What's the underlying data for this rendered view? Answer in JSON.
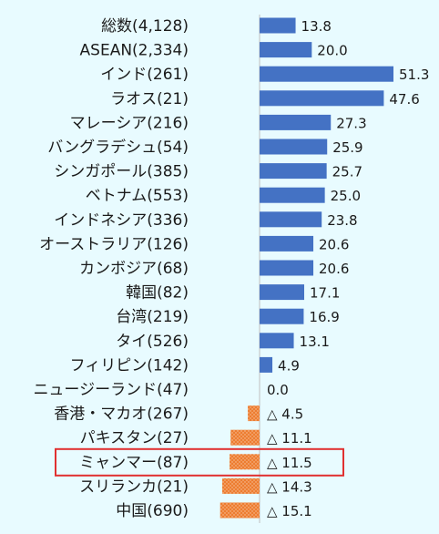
{
  "chart_data": {
    "type": "bar",
    "orientation": "horizontal",
    "title": "",
    "xlabel": "",
    "ylabel": "",
    "xlim": [
      -20,
      55
    ],
    "grid": false,
    "legend": "none",
    "colors": {
      "positive": "#4472c4",
      "negative": "#ed7d31",
      "highlight_box": "#e03030"
    },
    "highlight_category": "ミャンマー(87)",
    "categories": [
      "総数(4,128)",
      "ASEAN(2,334)",
      "インド(261)",
      "ラオス(21)",
      "マレーシア(216)",
      "バングラデシュ(54)",
      "シンガポール(385)",
      "ベトナム(553)",
      "インドネシア(336)",
      "オーストラリア(126)",
      "カンボジア(68)",
      "韓国(82)",
      "台湾(219)",
      "タイ(526)",
      "フィリピン(142)",
      "ニュージーランド(47)",
      "香港・マカオ(267)",
      "パキスタン(27)",
      "ミャンマー(87)",
      "スリランカ(21)",
      "中国(690)"
    ],
    "values": [
      13.8,
      20.0,
      51.3,
      47.6,
      27.3,
      25.9,
      25.7,
      25.0,
      23.8,
      20.6,
      20.6,
      17.1,
      16.9,
      13.1,
      4.9,
      0.0,
      -4.5,
      -11.1,
      -11.5,
      -14.3,
      -15.1
    ],
    "value_labels": [
      "13.8",
      "20.0",
      "51.3",
      "47.6",
      "27.3",
      "25.9",
      "25.7",
      "25.0",
      "23.8",
      "20.6",
      "20.6",
      "17.1",
      "16.9",
      "13.1",
      "4.9",
      "0.0",
      "△ 4.5",
      "△ 11.1",
      "△ 11.5",
      "△ 14.3",
      "△ 15.1"
    ]
  }
}
